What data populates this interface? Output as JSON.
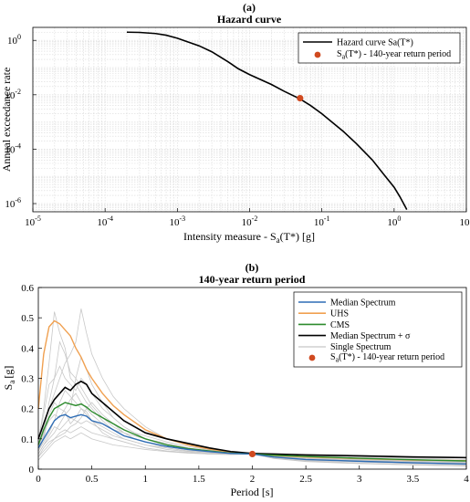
{
  "chart_data": [
    {
      "panel_label": "(a)",
      "type": "line",
      "title": "Hazard curve",
      "xlabel": "Intensity measure - S",
      "xlabel_sub": "a",
      "xlabel_tail": "(T*) [g]",
      "ylabel": "Annual exceedance rate",
      "xscale": "log",
      "yscale": "log",
      "xlim": [
        1e-05,
        10
      ],
      "ylim": [
        5e-07,
        3
      ],
      "grid": true,
      "legend_position": "top-right",
      "x_ticks": [
        {
          "base": "10",
          "exp": "-5",
          "value": 1e-05
        },
        {
          "base": "10",
          "exp": "-4",
          "value": 0.0001
        },
        {
          "base": "10",
          "exp": "-3",
          "value": 0.001
        },
        {
          "base": "10",
          "exp": "-2",
          "value": 0.01
        },
        {
          "base": "10",
          "exp": "-1",
          "value": 0.1
        },
        {
          "base": "10",
          "exp": "0",
          "value": 1
        },
        {
          "base": "10",
          "exp": "1",
          "value": 10
        }
      ],
      "y_ticks": [
        {
          "base": "10",
          "exp": "0",
          "value": 1
        },
        {
          "base": "10",
          "exp": "-2",
          "value": 0.01
        },
        {
          "base": "10",
          "exp": "-4",
          "value": 0.0001
        },
        {
          "base": "10",
          "exp": "-6",
          "value": 1e-06
        }
      ],
      "series": [
        {
          "name": "Hazard curve Sa(T*)",
          "color": "#000000",
          "x": [
            0.0002,
            0.0003,
            0.0005,
            0.0007,
            0.001,
            0.002,
            0.003,
            0.005,
            0.007,
            0.01,
            0.02,
            0.03,
            0.05,
            0.07,
            0.1,
            0.2,
            0.3,
            0.5,
            0.7,
            1.0,
            1.2,
            1.5
          ],
          "y": [
            2.0,
            1.96,
            1.78,
            1.55,
            1.2,
            0.63,
            0.38,
            0.165,
            0.09,
            0.055,
            0.024,
            0.0135,
            0.007,
            0.004,
            0.002,
            0.00044,
            0.00016,
            4e-05,
            1.3e-05,
            4e-06,
            1.8e-06,
            6e-07
          ]
        }
      ],
      "markers": [
        {
          "name_main": "S",
          "name_sub": "a",
          "name_tail": "(T*) - 140-year return period",
          "color": "#d04a20",
          "x": 0.05,
          "y": 0.0075
        }
      ]
    },
    {
      "panel_label": "(b)",
      "type": "line",
      "title": "140-year return period",
      "xlabel": "Period [s]",
      "ylabel": "S",
      "ylabel_sub": "a",
      "ylabel_tail": "[g]",
      "xlim": [
        0,
        4
      ],
      "ylim": [
        0,
        0.6
      ],
      "grid": false,
      "legend_position": "top-right",
      "x_ticks": [
        "0",
        "0.5",
        "1",
        "1.5",
        "2",
        "2.5",
        "3",
        "3.5",
        "4"
      ],
      "y_ticks": [
        "0",
        "0.1",
        "0.2",
        "0.3",
        "0.4",
        "0.5",
        "0.6"
      ],
      "x": [
        0,
        0.05,
        0.1,
        0.15,
        0.2,
        0.25,
        0.3,
        0.35,
        0.4,
        0.45,
        0.5,
        0.6,
        0.7,
        0.8,
        0.9,
        1.0,
        1.2,
        1.4,
        1.6,
        1.8,
        2.0,
        2.2,
        2.5,
        3.0,
        3.5,
        4.0
      ],
      "series": [
        {
          "name": "Median Spectrum",
          "color": "#2f6db5",
          "values": [
            0.07,
            0.1,
            0.13,
            0.16,
            0.175,
            0.18,
            0.17,
            0.175,
            0.18,
            0.175,
            0.16,
            0.15,
            0.13,
            0.11,
            0.1,
            0.09,
            0.075,
            0.065,
            0.058,
            0.052,
            0.05,
            0.04,
            0.032,
            0.026,
            0.021,
            0.017
          ]
        },
        {
          "name": "UHS",
          "color": "#f0a050",
          "values": [
            0.2,
            0.38,
            0.47,
            0.49,
            0.48,
            0.46,
            0.44,
            0.4,
            0.37,
            0.33,
            0.3,
            0.25,
            0.21,
            0.18,
            0.155,
            0.13,
            0.1,
            0.08,
            0.066,
            0.056,
            0.05,
            0.045,
            0.04,
            0.035,
            0.03,
            0.028
          ]
        },
        {
          "name": "CMS",
          "color": "#2e8b2e",
          "values": [
            0.08,
            0.13,
            0.17,
            0.2,
            0.21,
            0.22,
            0.215,
            0.21,
            0.215,
            0.205,
            0.19,
            0.17,
            0.15,
            0.13,
            0.115,
            0.1,
            0.08,
            0.068,
            0.06,
            0.053,
            0.05,
            0.046,
            0.042,
            0.036,
            0.031,
            0.027
          ]
        },
        {
          "name": "Median Spectrum + σ",
          "color": "#000000",
          "values": [
            0.1,
            0.15,
            0.2,
            0.23,
            0.25,
            0.27,
            0.26,
            0.28,
            0.29,
            0.28,
            0.25,
            0.22,
            0.19,
            0.16,
            0.14,
            0.12,
            0.1,
            0.085,
            0.07,
            0.058,
            0.052,
            0.05,
            0.047,
            0.044,
            0.04,
            0.038
          ]
        }
      ],
      "single_spectra": {
        "name": "Single Spectrum",
        "color": "#c8c8c8",
        "values": [
          [
            0.06,
            0.1,
            0.18,
            0.22,
            0.2,
            0.19,
            0.15,
            0.17,
            0.2,
            0.19,
            0.16,
            0.12,
            0.1,
            0.09,
            0.08,
            0.07,
            0.06,
            0.055,
            0.05,
            0.048,
            0.05,
            0.035,
            0.025,
            0.018,
            0.014,
            0.01
          ],
          [
            0.09,
            0.2,
            0.35,
            0.52,
            0.45,
            0.4,
            0.3,
            0.28,
            0.25,
            0.22,
            0.2,
            0.16,
            0.13,
            0.11,
            0.1,
            0.09,
            0.07,
            0.06,
            0.055,
            0.05,
            0.05,
            0.042,
            0.035,
            0.028,
            0.022,
            0.018
          ],
          [
            0.05,
            0.08,
            0.1,
            0.12,
            0.15,
            0.18,
            0.2,
            0.3,
            0.37,
            0.33,
            0.28,
            0.22,
            0.17,
            0.14,
            0.12,
            0.1,
            0.08,
            0.065,
            0.055,
            0.05,
            0.05,
            0.045,
            0.04,
            0.032,
            0.027,
            0.022
          ],
          [
            0.04,
            0.07,
            0.09,
            0.1,
            0.12,
            0.13,
            0.12,
            0.13,
            0.14,
            0.13,
            0.12,
            0.11,
            0.1,
            0.09,
            0.08,
            0.07,
            0.06,
            0.055,
            0.05,
            0.05,
            0.05,
            0.04,
            0.03,
            0.024,
            0.019,
            0.015
          ],
          [
            0.08,
            0.14,
            0.2,
            0.25,
            0.3,
            0.35,
            0.38,
            0.42,
            0.53,
            0.45,
            0.38,
            0.3,
            0.24,
            0.2,
            0.17,
            0.14,
            0.1,
            0.08,
            0.065,
            0.055,
            0.05,
            0.048,
            0.045,
            0.04,
            0.036,
            0.032
          ],
          [
            0.06,
            0.09,
            0.12,
            0.16,
            0.22,
            0.26,
            0.24,
            0.22,
            0.2,
            0.18,
            0.16,
            0.14,
            0.12,
            0.1,
            0.09,
            0.08,
            0.065,
            0.058,
            0.052,
            0.05,
            0.05,
            0.038,
            0.028,
            0.02,
            0.015,
            0.012
          ],
          [
            0.07,
            0.12,
            0.16,
            0.18,
            0.17,
            0.2,
            0.23,
            0.25,
            0.22,
            0.2,
            0.18,
            0.15,
            0.13,
            0.12,
            0.11,
            0.1,
            0.085,
            0.07,
            0.06,
            0.054,
            0.05,
            0.046,
            0.04,
            0.033,
            0.028,
            0.024
          ],
          [
            0.03,
            0.05,
            0.07,
            0.09,
            0.1,
            0.11,
            0.1,
            0.11,
            0.12,
            0.11,
            0.1,
            0.09,
            0.08,
            0.075,
            0.07,
            0.065,
            0.058,
            0.053,
            0.05,
            0.05,
            0.05,
            0.036,
            0.026,
            0.019,
            0.014,
            0.011
          ],
          [
            0.1,
            0.18,
            0.28,
            0.3,
            0.34,
            0.3,
            0.28,
            0.26,
            0.3,
            0.28,
            0.25,
            0.2,
            0.17,
            0.14,
            0.12,
            0.11,
            0.09,
            0.075,
            0.063,
            0.054,
            0.05,
            0.05,
            0.048,
            0.045,
            0.042,
            0.04
          ],
          [
            0.05,
            0.08,
            0.11,
            0.14,
            0.13,
            0.15,
            0.17,
            0.16,
            0.15,
            0.16,
            0.15,
            0.13,
            0.11,
            0.1,
            0.09,
            0.08,
            0.07,
            0.06,
            0.055,
            0.05,
            0.05,
            0.04,
            0.031,
            0.024,
            0.019,
            0.016
          ],
          [
            0.06,
            0.11,
            0.22,
            0.3,
            0.42,
            0.38,
            0.32,
            0.3,
            0.27,
            0.24,
            0.21,
            0.17,
            0.14,
            0.12,
            0.1,
            0.09,
            0.075,
            0.063,
            0.056,
            0.051,
            0.05,
            0.043,
            0.036,
            0.029,
            0.024,
            0.02
          ],
          [
            0.04,
            0.06,
            0.08,
            0.1,
            0.11,
            0.12,
            0.14,
            0.15,
            0.17,
            0.2,
            0.22,
            0.18,
            0.15,
            0.12,
            0.1,
            0.09,
            0.075,
            0.065,
            0.057,
            0.052,
            0.05,
            0.044,
            0.038,
            0.031,
            0.026,
            0.022
          ]
        ]
      },
      "markers": [
        {
          "name_main": "S",
          "name_sub": "a",
          "name_tail": "(T*) - 140-year return period",
          "color": "#d04a20",
          "x": 2.0,
          "y": 0.05
        }
      ]
    }
  ]
}
